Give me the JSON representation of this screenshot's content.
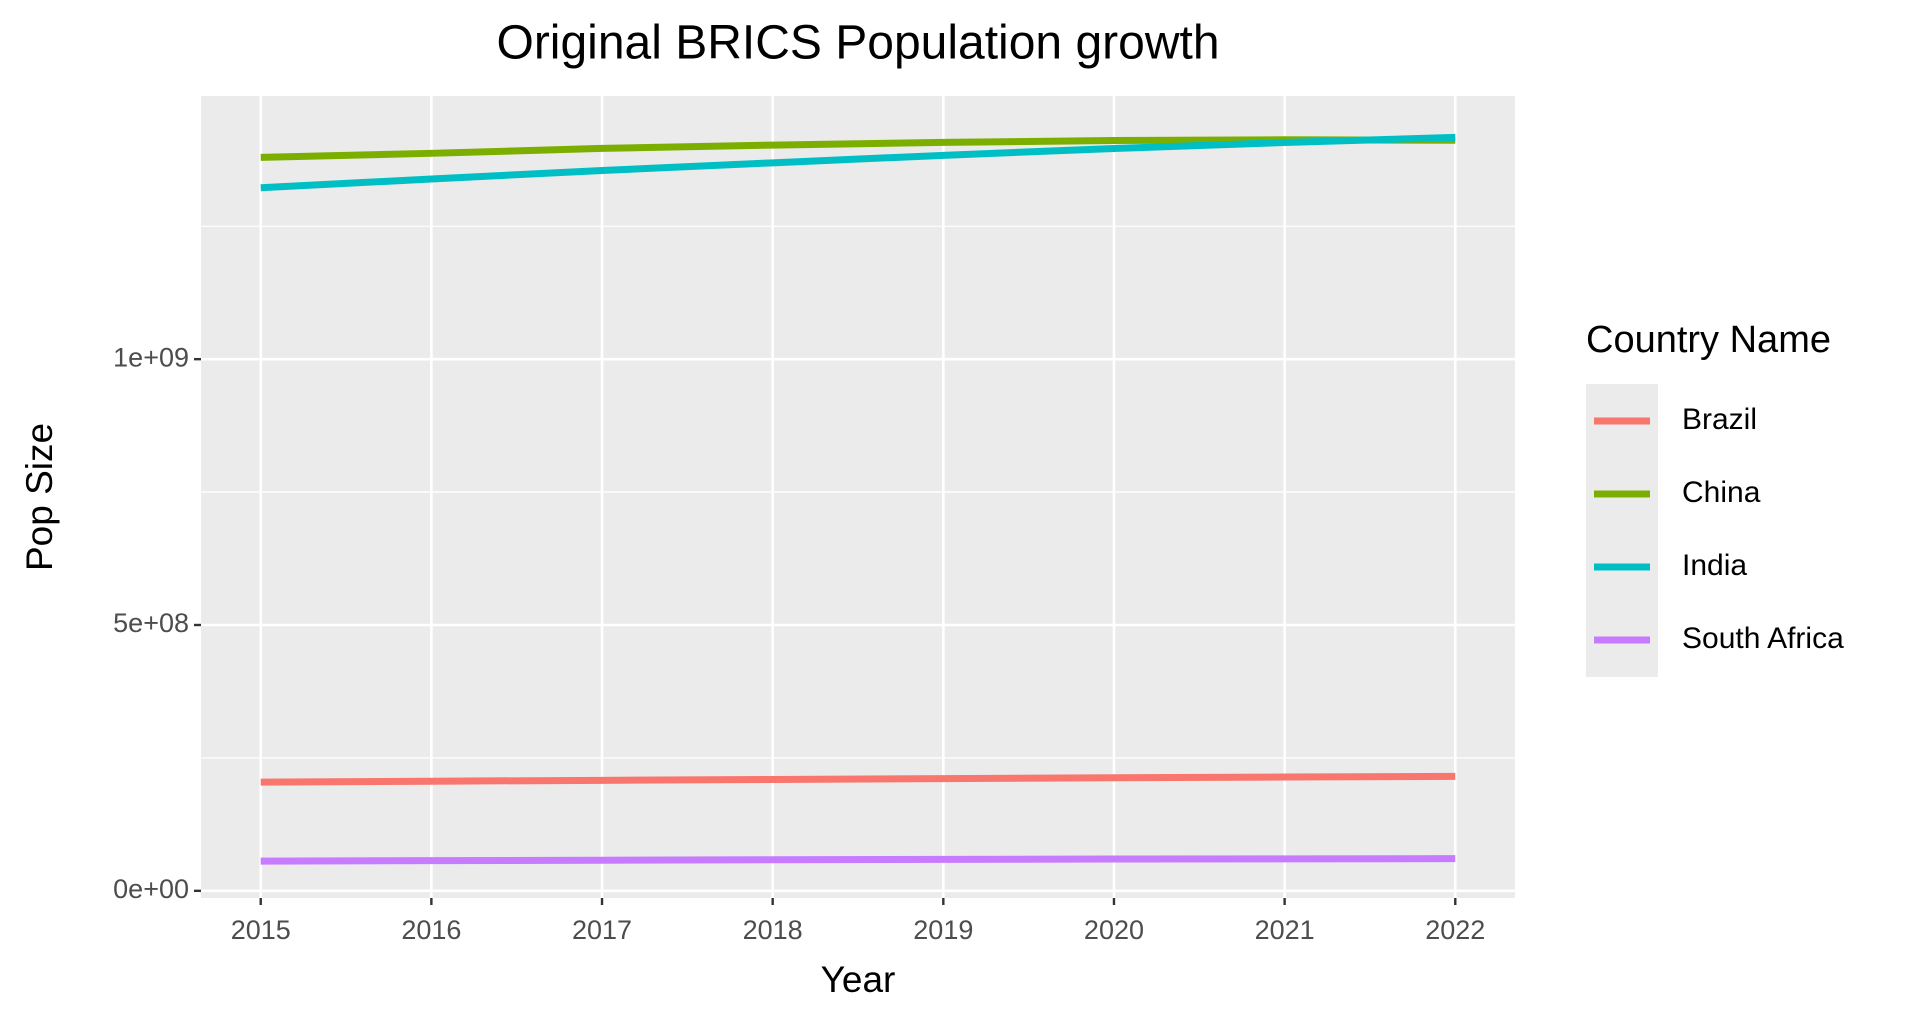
{
  "chart_data": {
    "type": "line",
    "title": "Original BRICS Population growth",
    "x_label": "Year",
    "y_label": "Pop Size",
    "legend_title": "Country Name",
    "legend_position": "right",
    "grid": true,
    "x": [
      2015,
      2016,
      2017,
      2018,
      2019,
      2020,
      2021,
      2022
    ],
    "xlim": [
      2014.65,
      2022.35
    ],
    "xticks": [
      2015,
      2016,
      2017,
      2018,
      2019,
      2020,
      2021,
      2022
    ],
    "ylim": [
      -13500000,
      1495000000
    ],
    "yticks": [
      {
        "value": 0,
        "label": "0e+00"
      },
      {
        "value": 500000000,
        "label": "5e+08"
      },
      {
        "value": 1000000000,
        "label": "1e+09"
      }
    ],
    "series": [
      {
        "name": "Brazil",
        "color": "#F8766D",
        "values": [
          204500000,
          206200000,
          207800000,
          209500000,
          211000000,
          212600000,
          214000000,
          215300000
        ]
      },
      {
        "name": "China",
        "color": "#7CAE00",
        "values": [
          1379500000,
          1387200000,
          1396400000,
          1402700000,
          1407800000,
          1411200000,
          1412600000,
          1411800000
        ]
      },
      {
        "name": "India",
        "color": "#00BFC4",
        "values": [
          1322400000,
          1338900000,
          1354900000,
          1369300000,
          1383400000,
          1396200000,
          1407600000,
          1417100000
        ]
      },
      {
        "name": "South Africa",
        "color": "#C77CFF",
        "values": [
          55900000,
          56700000,
          57500000,
          58400000,
          59200000,
          59800000,
          60100000,
          60600000
        ]
      }
    ]
  }
}
